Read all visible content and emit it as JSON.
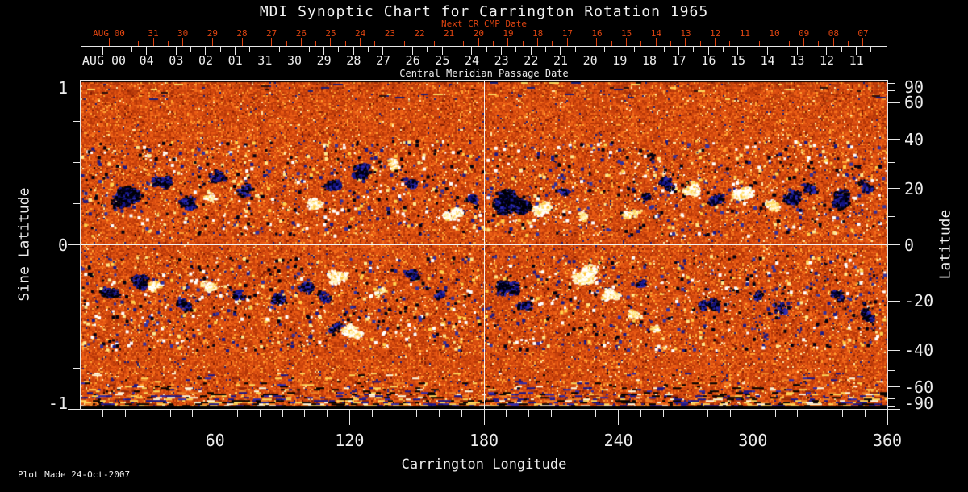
{
  "title": "MDI Synoptic Chart for Carrington Rotation 1965",
  "footer": {
    "plot_made": "Plot Made 24-Oct-2007"
  },
  "colors": {
    "background": "#000000",
    "foreground": "#ededed",
    "accent_red": "#dd4411"
  },
  "top_axis": {
    "next_title": "Next CR CMP Date",
    "cmp_title": "Central Meridian Passage Date",
    "next_month_label": "AUG 00",
    "cmp_month_label": "AUG 00",
    "next_dates": [
      "31",
      "30",
      "29",
      "28",
      "27",
      "26",
      "25",
      "24",
      "23",
      "22",
      "21",
      "20",
      "19",
      "18",
      "17",
      "16",
      "15",
      "14",
      "13",
      "12",
      "11",
      "10",
      "09",
      "08",
      "07"
    ],
    "cmp_dates": [
      "04",
      "03",
      "02",
      "01",
      "31",
      "30",
      "29",
      "28",
      "27",
      "26",
      "25",
      "24",
      "23",
      "22",
      "21",
      "20",
      "19",
      "18",
      "17",
      "16",
      "15",
      "14",
      "13",
      "12",
      "11"
    ]
  },
  "x_axis": {
    "label": "Carrington Longitude",
    "major_tick_labels": [
      "60",
      "120",
      "180",
      "240",
      "300",
      "360"
    ]
  },
  "y_axis_left": {
    "label": "Sine Latitude",
    "major_tick_labels": [
      "1",
      "0",
      "-1"
    ]
  },
  "y_axis_right": {
    "label": "Latitude",
    "major_tick_labels": [
      "90",
      "60",
      "40",
      "20",
      "0",
      "-20",
      "-40",
      "-60",
      "-90"
    ]
  },
  "chart_data": {
    "type": "heatmap",
    "description": "MDI line-of-sight magnetic field synoptic map for Carrington rotation 1965. Mottled orange quiet-sun noise with two activity belts near sine latitude +/-0.3: dark blue-black patches are negative polarity, white-yellow patches positive polarity. Salt-and-pepper noisy rows near the south pole, black strip at sine latitude -1. White crosshair lines mark longitude 180 and the equator.",
    "x": {
      "label": "Carrington Longitude",
      "range": [
        0,
        360
      ],
      "major_ticks": [
        60,
        120,
        180,
        240,
        300,
        360
      ],
      "minor_step": 10
    },
    "y": {
      "label": "Sine Latitude",
      "range": [
        -1,
        1
      ],
      "major_ticks": [
        1,
        0,
        -1
      ],
      "minor_ticks": [
        0.75,
        0.5,
        0.25,
        -0.25,
        -0.5,
        -0.75
      ]
    },
    "y2": {
      "label": "Latitude",
      "major_ticks": [
        90,
        60,
        40,
        20,
        0,
        -20,
        -40,
        -60,
        -90
      ],
      "minor_ticks": [
        80,
        70,
        50,
        30,
        10,
        -10,
        -30,
        -50,
        -70,
        -80
      ]
    },
    "top": {
      "days_per_rotation": 27.2753,
      "next_cr_offset_days": 0.22
    },
    "crosshair": {
      "longitude": 180,
      "sine_latitude": 0
    },
    "noise_seed": 19650,
    "palette": {
      "base": [
        [
          "#b43608",
          0.16
        ],
        [
          "#c8420c",
          0.24
        ],
        [
          "#da4e10",
          0.24
        ],
        [
          "#ea5c14",
          0.17
        ],
        [
          "#f4701c",
          0.09
        ],
        [
          "#ffa434",
          0.05
        ],
        [
          "#821e04",
          0.025
        ],
        [
          "#1c1c74",
          0.012
        ],
        [
          "#ffe9a8",
          0.013
        ]
      ],
      "neg_speck": [
        [
          "#000010",
          0.5
        ],
        [
          "#1a1a86",
          0.3
        ],
        [
          "#31319e",
          0.2
        ]
      ],
      "pos_speck": [
        [
          "#ffffff",
          0.45
        ],
        [
          "#ffe98e",
          0.3
        ],
        [
          "#ffd24e",
          0.25
        ]
      ],
      "neg_fringe": [
        [
          "#16168a",
          0.45
        ],
        [
          "#2d2db4",
          0.3
        ],
        [
          "#00002a",
          0.25
        ]
      ],
      "pos_fringe": [
        [
          "#fff3b4",
          0.4
        ],
        [
          "#ffde6a",
          0.35
        ],
        [
          "#ffc53e",
          0.25
        ]
      ],
      "south_polar": [
        [
          "#000000",
          0.24
        ],
        [
          "#14148c",
          0.18
        ],
        [
          "#2a2ab0",
          0.08
        ],
        [
          "#ffd95c",
          0.18
        ],
        [
          "#fffbe0",
          0.14
        ],
        [
          "#8c2406",
          0.08
        ],
        [
          "#f08428",
          0.1
        ]
      ],
      "north_polar": [
        [
          "#1c1c74",
          0.4
        ],
        [
          "#ffd95c",
          0.3
        ],
        [
          "#30100a",
          0.3
        ]
      ]
    },
    "speckle": {
      "count": 2600,
      "neg_fraction": 0.55,
      "belt_sine_range": [
        0.06,
        0.64
      ]
    },
    "active_regions": [
      [
        22,
        0.3,
        16,
        "n",
        0.95
      ],
      [
        36,
        0.38,
        11,
        "n",
        0.8
      ],
      [
        47,
        0.26,
        9,
        "n",
        0.6
      ],
      [
        60,
        0.42,
        8,
        "n",
        0.5
      ],
      [
        73,
        0.34,
        9,
        "n",
        0.55
      ],
      [
        57,
        0.3,
        6,
        "p",
        0.5
      ],
      [
        105,
        0.26,
        9,
        "p",
        0.75
      ],
      [
        112,
        0.37,
        8,
        "n",
        0.55
      ],
      [
        126,
        0.46,
        10,
        "n",
        0.6
      ],
      [
        140,
        0.5,
        8,
        "p",
        0.65
      ],
      [
        147,
        0.38,
        7,
        "n",
        0.45
      ],
      [
        165,
        0.2,
        9,
        "p",
        0.9
      ],
      [
        174,
        0.28,
        6,
        "n",
        0.45
      ],
      [
        192,
        0.26,
        16,
        "n",
        0.95
      ],
      [
        205,
        0.22,
        9,
        "p",
        0.9
      ],
      [
        214,
        0.34,
        7,
        "n",
        0.5
      ],
      [
        224,
        0.18,
        6,
        "p",
        0.55
      ],
      [
        245,
        0.2,
        8,
        "p",
        0.75
      ],
      [
        253,
        0.3,
        6,
        "n",
        0.45
      ],
      [
        262,
        0.38,
        9,
        "n",
        0.6
      ],
      [
        272,
        0.35,
        8,
        "p",
        0.7
      ],
      [
        283,
        0.28,
        7,
        "n",
        0.5
      ],
      [
        296,
        0.33,
        12,
        "p",
        0.9
      ],
      [
        308,
        0.25,
        8,
        "p",
        0.6
      ],
      [
        316,
        0.3,
        10,
        "n",
        0.75
      ],
      [
        325,
        0.36,
        7,
        "n",
        0.5
      ],
      [
        338,
        0.28,
        13,
        "n",
        0.9
      ],
      [
        350,
        0.36,
        8,
        "n",
        0.6
      ],
      [
        12,
        -0.3,
        10,
        "n",
        0.7
      ],
      [
        25,
        -0.22,
        9,
        "n",
        0.6
      ],
      [
        33,
        -0.26,
        7,
        "p",
        0.75
      ],
      [
        45,
        -0.36,
        8,
        "n",
        0.55
      ],
      [
        57,
        -0.25,
        7,
        "p",
        0.8
      ],
      [
        70,
        -0.3,
        6,
        "n",
        0.45
      ],
      [
        87,
        -0.32,
        8,
        "n",
        0.6
      ],
      [
        100,
        -0.26,
        7,
        "n",
        0.5
      ],
      [
        114,
        -0.2,
        9,
        "p",
        0.8
      ],
      [
        108,
        -0.31,
        7,
        "n",
        0.5
      ],
      [
        121,
        -0.52,
        9,
        "p",
        0.9
      ],
      [
        113,
        -0.5,
        6,
        "n",
        0.55
      ],
      [
        133,
        -0.28,
        6,
        "p",
        0.5
      ],
      [
        147,
        -0.18,
        7,
        "n",
        0.5
      ],
      [
        160,
        -0.3,
        6,
        "n",
        0.45
      ],
      [
        190,
        -0.26,
        10,
        "n",
        0.7
      ],
      [
        198,
        -0.38,
        8,
        "n",
        0.6
      ],
      [
        225,
        -0.18,
        13,
        "p",
        0.95
      ],
      [
        236,
        -0.3,
        8,
        "p",
        0.7
      ],
      [
        247,
        -0.42,
        7,
        "p",
        0.6
      ],
      [
        255,
        -0.5,
        6,
        "p",
        0.5
      ],
      [
        250,
        -0.23,
        5,
        "n",
        0.65
      ],
      [
        280,
        -0.35,
        9,
        "n",
        0.6
      ],
      [
        300,
        -0.3,
        7,
        "n",
        0.5
      ],
      [
        312,
        -0.38,
        7,
        "n",
        0.5
      ],
      [
        338,
        -0.3,
        8,
        "n",
        0.6
      ],
      [
        350,
        -0.42,
        8,
        "n",
        0.5
      ]
    ]
  }
}
